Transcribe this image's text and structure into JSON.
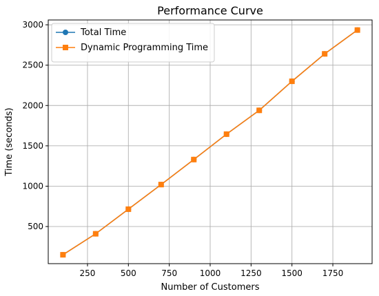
{
  "chart_data": {
    "type": "line",
    "title": "Performance Curve",
    "xlabel": "Number of Customers",
    "ylabel": "Time (seconds)",
    "xlim": [
      10,
      1990
    ],
    "ylim": [
      40,
      3060
    ],
    "xticks": [
      250,
      500,
      750,
      1000,
      1250,
      1500,
      1750
    ],
    "yticks": [
      500,
      1000,
      1500,
      2000,
      2500,
      3000
    ],
    "grid": true,
    "legend_position": "top-left",
    "x": [
      100,
      300,
      500,
      700,
      900,
      1100,
      1300,
      1500,
      1700,
      1900
    ],
    "series": [
      {
        "name": "Total Time",
        "color": "#1f77b4",
        "marker": "circle",
        "values": [
          150,
          410,
          715,
          1020,
          1330,
          1645,
          1940,
          2300,
          2640,
          2935
        ]
      },
      {
        "name": "Dynamic Programming Time",
        "color": "#ff7f0e",
        "marker": "square",
        "values": [
          150,
          410,
          715,
          1020,
          1330,
          1645,
          1940,
          2300,
          2640,
          2935
        ]
      }
    ]
  }
}
